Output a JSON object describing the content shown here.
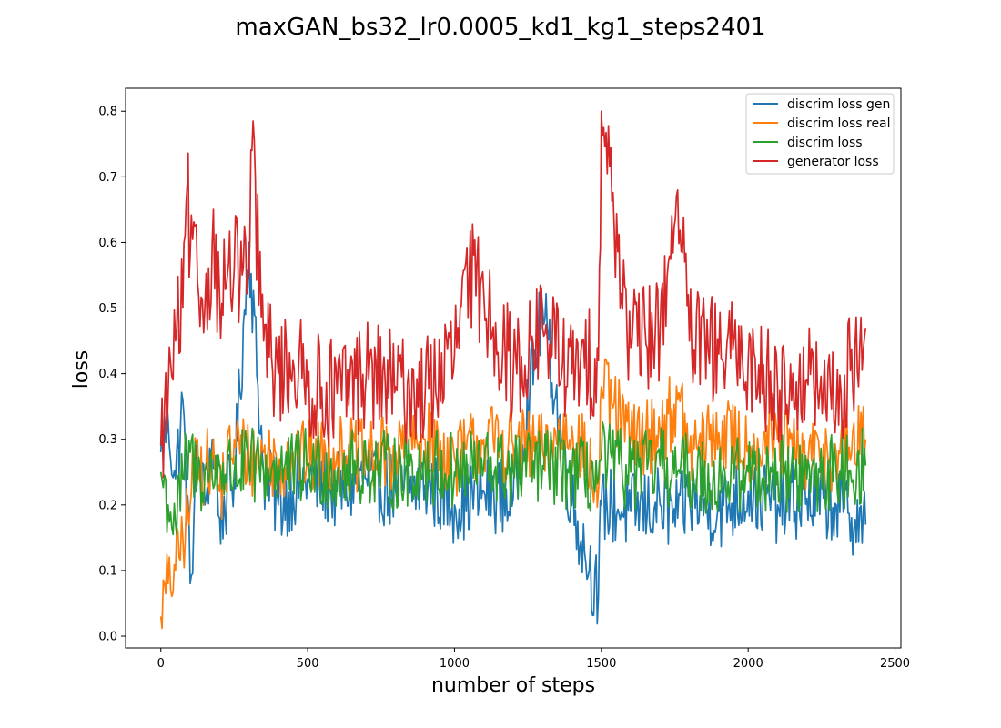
{
  "chart_data": {
    "type": "line",
    "title": "maxGAN_bs32_lr0.0005_kd1_kg1_steps2401",
    "xlabel": "number of steps",
    "ylabel": "loss",
    "xlim": [
      -120,
      2520
    ],
    "ylim": [
      -0.018,
      0.835
    ],
    "xticks": [
      0,
      500,
      1000,
      1500,
      2000,
      2500
    ],
    "yticks": [
      0.0,
      0.1,
      0.2,
      0.3,
      0.4,
      0.5,
      0.6,
      0.7,
      0.8
    ],
    "xtick_labels": [
      "0",
      "500",
      "1000",
      "1500",
      "2000",
      "2500"
    ],
    "ytick_labels": [
      "0.0",
      "0.1",
      "0.2",
      "0.3",
      "0.4",
      "0.5",
      "0.6",
      "0.7",
      "0.8"
    ],
    "grid": false,
    "legend_position": "top-right",
    "series": [
      {
        "name": "discrim loss gen",
        "color": "#1f77b4",
        "x": [
          0,
          25,
          50,
          75,
          100,
          125,
          150,
          175,
          200,
          250,
          300,
          350,
          400,
          450,
          500,
          600,
          700,
          800,
          900,
          1000,
          1100,
          1200,
          1300,
          1400,
          1490,
          1500,
          1600,
          1700,
          1760,
          1800,
          1900,
          2000,
          2100,
          2200,
          2300,
          2400
        ],
        "y": [
          0.28,
          0.33,
          0.24,
          0.36,
          0.08,
          0.28,
          0.2,
          0.3,
          0.18,
          0.24,
          0.6,
          0.25,
          0.2,
          0.22,
          0.24,
          0.22,
          0.24,
          0.22,
          0.23,
          0.2,
          0.22,
          0.21,
          0.5,
          0.2,
          0.06,
          0.2,
          0.19,
          0.2,
          0.18,
          0.21,
          0.19,
          0.22,
          0.2,
          0.21,
          0.2,
          0.17
        ]
      },
      {
        "name": "discrim loss real",
        "color": "#ff7f0e",
        "x": [
          0,
          25,
          50,
          75,
          100,
          125,
          150,
          175,
          200,
          250,
          300,
          350,
          400,
          450,
          500,
          600,
          700,
          800,
          900,
          1000,
          1100,
          1200,
          1300,
          1400,
          1490,
          1500,
          1600,
          1700,
          1760,
          1800,
          1900,
          2000,
          2100,
          2200,
          2300,
          2400
        ],
        "y": [
          0.03,
          0.08,
          0.1,
          0.15,
          0.2,
          0.3,
          0.25,
          0.27,
          0.22,
          0.3,
          0.27,
          0.28,
          0.26,
          0.28,
          0.27,
          0.28,
          0.27,
          0.28,
          0.3,
          0.27,
          0.3,
          0.29,
          0.28,
          0.32,
          0.22,
          0.38,
          0.3,
          0.31,
          0.36,
          0.28,
          0.31,
          0.29,
          0.3,
          0.27,
          0.28,
          0.3
        ]
      },
      {
        "name": "discrim loss",
        "color": "#2ca02c",
        "x": [
          0,
          25,
          50,
          75,
          100,
          125,
          150,
          175,
          200,
          250,
          300,
          350,
          400,
          450,
          500,
          600,
          700,
          800,
          900,
          1000,
          1100,
          1200,
          1300,
          1400,
          1490,
          1500,
          1600,
          1700,
          1760,
          1800,
          1900,
          2000,
          2100,
          2200,
          2300,
          2400
        ],
        "y": [
          0.25,
          0.2,
          0.17,
          0.24,
          0.28,
          0.24,
          0.25,
          0.24,
          0.26,
          0.25,
          0.26,
          0.25,
          0.26,
          0.25,
          0.26,
          0.25,
          0.26,
          0.25,
          0.26,
          0.25,
          0.26,
          0.25,
          0.26,
          0.25,
          0.24,
          0.27,
          0.25,
          0.26,
          0.25,
          0.25,
          0.24,
          0.25,
          0.25,
          0.24,
          0.25,
          0.26
        ]
      },
      {
        "name": "generator loss",
        "color": "#d62728",
        "x": [
          0,
          25,
          50,
          75,
          90,
          100,
          125,
          150,
          175,
          200,
          250,
          300,
          310,
          350,
          400,
          450,
          500,
          600,
          700,
          800,
          900,
          1000,
          1050,
          1100,
          1200,
          1300,
          1400,
          1490,
          1500,
          1600,
          1700,
          1760,
          1800,
          1900,
          2000,
          2100,
          2200,
          2300,
          2400
        ],
        "y": [
          0.29,
          0.37,
          0.45,
          0.5,
          0.69,
          0.58,
          0.54,
          0.5,
          0.6,
          0.52,
          0.56,
          0.55,
          0.74,
          0.45,
          0.4,
          0.42,
          0.38,
          0.37,
          0.4,
          0.38,
          0.37,
          0.43,
          0.55,
          0.52,
          0.4,
          0.47,
          0.4,
          0.42,
          0.8,
          0.44,
          0.47,
          0.68,
          0.45,
          0.43,
          0.42,
          0.38,
          0.39,
          0.35,
          0.47
        ]
      }
    ]
  }
}
